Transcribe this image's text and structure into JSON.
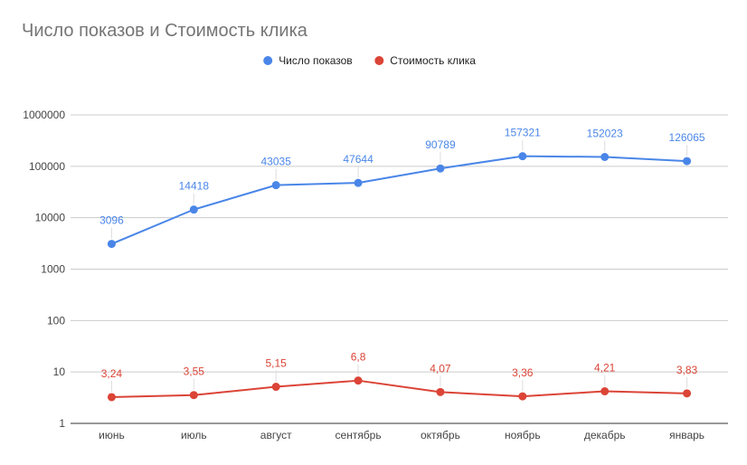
{
  "chart_data": {
    "type": "line",
    "title": "Число показов и Стоимость клика",
    "xlabel": "",
    "ylabel": "",
    "yscale": "log",
    "ylim": [
      1,
      1000000
    ],
    "grid": true,
    "legend_position": "top",
    "categories": [
      "июнь",
      "июль",
      "август",
      "сентябрь",
      "октябрь",
      "ноябрь",
      "декабрь",
      "январь"
    ],
    "y_ticks": [
      {
        "value": 1,
        "label": "1"
      },
      {
        "value": 10,
        "label": "10"
      },
      {
        "value": 100,
        "label": "100"
      },
      {
        "value": 1000,
        "label": "1000"
      },
      {
        "value": 10000,
        "label": "10000"
      },
      {
        "value": 100000,
        "label": "100000"
      },
      {
        "value": 1000000,
        "label": "1000000"
      }
    ],
    "series": [
      {
        "name": "Число показов",
        "color": "#4a86e8",
        "values": [
          3096,
          14418,
          43035,
          47644,
          90789,
          157321,
          152023,
          126065
        ],
        "labels": [
          "3096",
          "14418",
          "43035",
          "47644",
          "90789",
          "157321",
          "152023",
          "126065"
        ]
      },
      {
        "name": "Стоимость клика",
        "color": "#db4437",
        "values": [
          3.24,
          3.55,
          5.15,
          6.8,
          4.07,
          3.36,
          4.21,
          3.83
        ],
        "labels": [
          "3,24",
          "3,55",
          "5,15",
          "6,8",
          "4,07",
          "3,36",
          "4,21",
          "3,83"
        ]
      }
    ]
  }
}
